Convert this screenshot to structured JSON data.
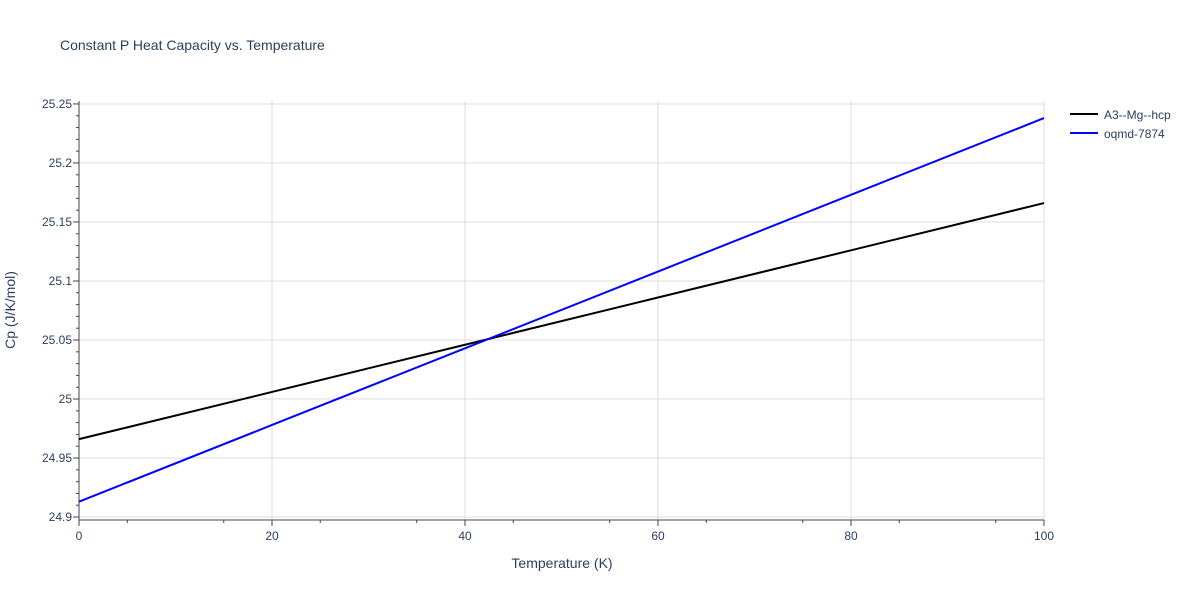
{
  "chart_data": {
    "type": "line",
    "title": "Constant P Heat Capacity vs. Temperature",
    "xlabel": "Temperature (K)",
    "ylabel": "Cp (J/K/mol)",
    "xlim": [
      0,
      100
    ],
    "ylim": [
      24.8975,
      25.2525
    ],
    "x_ticks": [
      0,
      20,
      40,
      60,
      80,
      100
    ],
    "x_tick_labels": [
      "0",
      "20",
      "40",
      "60",
      "80",
      "100"
    ],
    "y_ticks": [
      24.9,
      24.95,
      25.0,
      25.05,
      25.1,
      25.15,
      25.2,
      25.25
    ],
    "y_tick_labels": [
      "24.9",
      "24.95",
      "25",
      "25.05",
      "25.1",
      "25.15",
      "25.2",
      "25.25"
    ],
    "grid": true,
    "legend_position": "top-right, outside plot",
    "series": [
      {
        "name": "A3--Mg--hcp",
        "color": "#000000",
        "x": [
          0,
          20,
          40,
          60,
          80,
          100
        ],
        "y": [
          24.966,
          25.006,
          25.046,
          25.086,
          25.126,
          25.166
        ]
      },
      {
        "name": "oqmd-7874",
        "color": "#0000ff",
        "x": [
          0,
          20,
          40,
          60,
          80,
          100
        ],
        "y": [
          24.913,
          24.978,
          25.043,
          25.108,
          25.173,
          25.238
        ]
      }
    ]
  }
}
